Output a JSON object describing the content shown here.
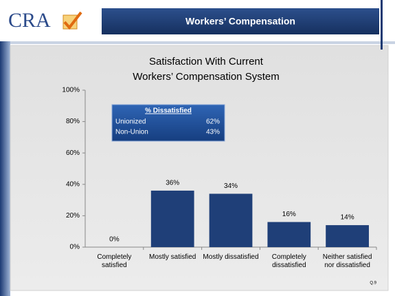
{
  "header": {
    "logo": "CRA",
    "title": "Workers’ Compensation"
  },
  "chart_data": {
    "type": "bar",
    "title": [
      "Satisfaction With Current",
      "Workers’ Compensation System"
    ],
    "categories": [
      "Completely satisfied",
      "Mostly satisfied",
      "Mostly dissatisfied",
      "Completely dissatisfied",
      "Neither satisfied nor dissatisfied"
    ],
    "values": [
      0,
      36,
      34,
      16,
      14
    ],
    "value_labels": [
      "0%",
      "36%",
      "34%",
      "16%",
      "14%"
    ],
    "color": "#1f3f78",
    "ylim": [
      0,
      100
    ],
    "yticks": [
      {
        "value": 0,
        "label": "0%"
      },
      {
        "value": 20,
        "label": "20%"
      },
      {
        "value": 40,
        "label": "40%"
      },
      {
        "value": 60,
        "label": "60%"
      },
      {
        "value": 80,
        "label": "80%"
      },
      {
        "value": 100,
        "label": "100%"
      }
    ],
    "grid": false,
    "inset": {
      "title": "% Dissatisfied",
      "rows": [
        {
          "label": "Unionized",
          "value": "62%"
        },
        {
          "label": "Non-Union",
          "value": "43%"
        }
      ]
    },
    "footnote": "Q.9"
  }
}
